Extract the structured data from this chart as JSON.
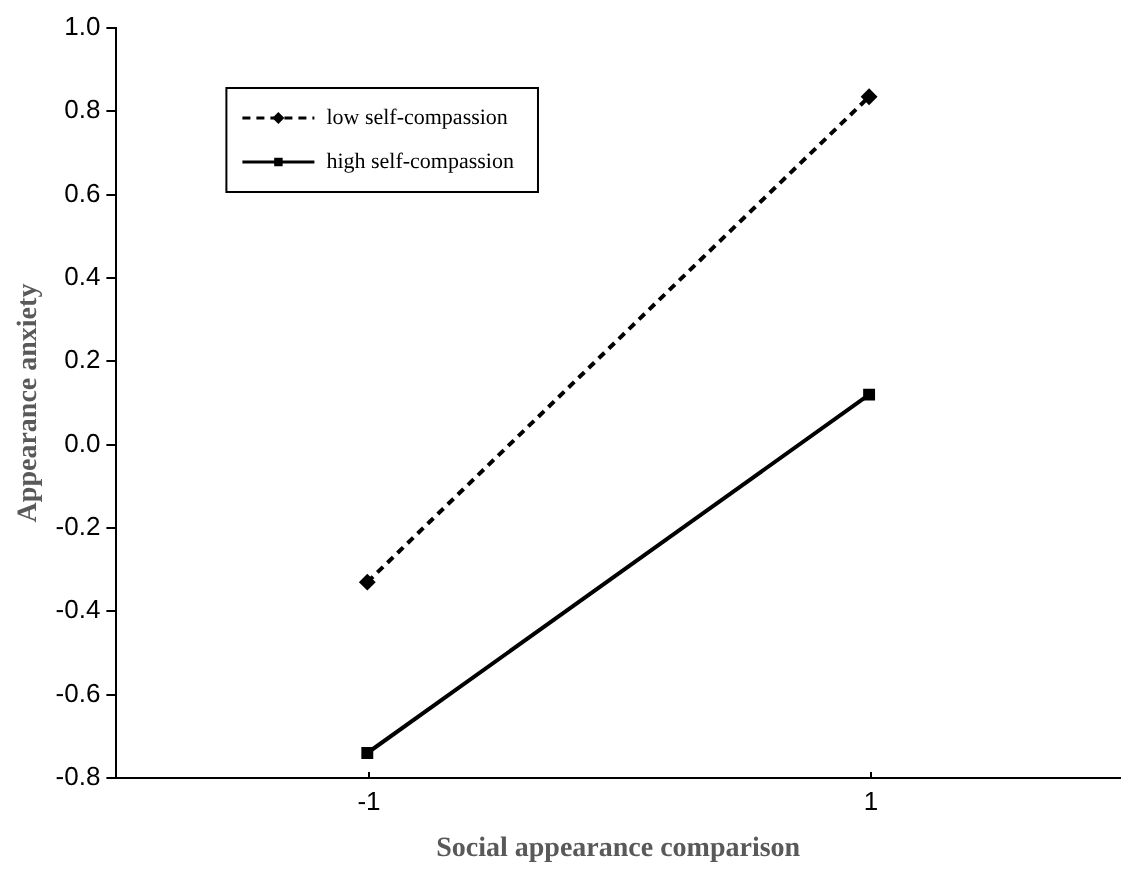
{
  "chart_data": {
    "type": "line",
    "xlabel": "Social appearance comparison",
    "ylabel": "Appearance anxiety",
    "x": [
      -1,
      1
    ],
    "xlim": [
      -2,
      2
    ],
    "xticks": [
      -1,
      1
    ],
    "series": [
      {
        "name": "low self-compassion",
        "color": "#000000",
        "values": [
          -0.33,
          0.835
        ],
        "marker": "diamond",
        "line_style": "dashed"
      },
      {
        "name": "high self-compassion",
        "color": "#000000",
        "values": [
          -0.74,
          0.12
        ],
        "marker": "square",
        "line_style": "solid"
      }
    ],
    "ylim": [
      -0.8,
      1.0
    ],
    "yticks": [
      {
        "value": -0.8,
        "label": "-0.8"
      },
      {
        "value": -0.6,
        "label": "-0.6"
      },
      {
        "value": -0.4,
        "label": "-0.4"
      },
      {
        "value": -0.2,
        "label": "-0.2"
      },
      {
        "value": 0,
        "label": "0.0"
      },
      {
        "value": 0.2,
        "label": "0.2"
      },
      {
        "value": 0.4,
        "label": "0.4"
      },
      {
        "value": 0.6,
        "label": "0.6"
      },
      {
        "value": 0.8,
        "label": "0.8"
      },
      {
        "value": 1,
        "label": "1.0"
      }
    ],
    "grid": false,
    "legend": "top left"
  }
}
